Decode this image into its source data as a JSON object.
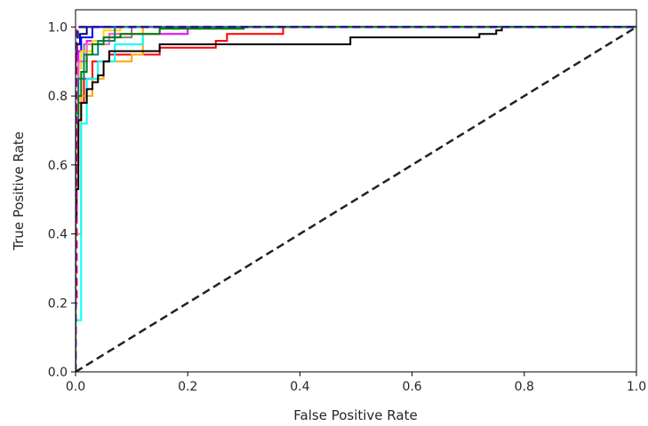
{
  "chart_data": {
    "type": "line",
    "title": "",
    "xlabel": "False Positive Rate",
    "ylabel": "True Positive Rate",
    "xlim": [
      0.0,
      1.0
    ],
    "ylim": [
      0.0,
      1.05
    ],
    "xticks": [
      0.0,
      0.2,
      0.4,
      0.6,
      0.8,
      1.0
    ],
    "yticks": [
      0.0,
      0.2,
      0.4,
      0.6,
      0.8,
      1.0
    ],
    "xtick_labels": [
      "0.0",
      "0.2",
      "0.4",
      "0.6",
      "0.8",
      "1.0"
    ],
    "ytick_labels": [
      "0.0",
      "0.2",
      "0.4",
      "0.6",
      "0.8",
      "1.0"
    ],
    "grid": false,
    "legend": "none",
    "series": [
      {
        "color": "#000080",
        "style": "solid",
        "x": [
          0,
          0,
          0.003,
          0.003,
          0.008,
          0.008,
          0.02,
          0.02,
          0.05,
          0.05,
          1.0
        ],
        "y": [
          0,
          0.9,
          0.9,
          0.95,
          0.95,
          0.98,
          0.98,
          1.0,
          1.0,
          1.0,
          1.0
        ]
      },
      {
        "color": "#0000ff",
        "style": "solid",
        "x": [
          0,
          0,
          0.005,
          0.005,
          0.01,
          0.01,
          0.03,
          0.03,
          1.0
        ],
        "y": [
          0,
          0.85,
          0.85,
          0.93,
          0.93,
          0.97,
          0.97,
          1.0,
          1.0
        ]
      },
      {
        "color": "#ff0000",
        "style": "solid",
        "x": [
          0,
          0,
          0.005,
          0.005,
          0.015,
          0.015,
          0.03,
          0.03,
          0.06,
          0.06,
          0.15,
          0.15,
          0.25,
          0.25,
          0.27,
          0.27,
          0.37,
          0.37,
          1.0
        ],
        "y": [
          0,
          0.6,
          0.6,
          0.78,
          0.78,
          0.85,
          0.85,
          0.9,
          0.9,
          0.92,
          0.92,
          0.94,
          0.94,
          0.96,
          0.96,
          0.98,
          0.98,
          1.0,
          1.0
        ]
      },
      {
        "color": "#ffa500",
        "style": "solid",
        "x": [
          0,
          0,
          0.01,
          0.01,
          0.03,
          0.03,
          0.05,
          0.05,
          0.1,
          0.1,
          0.12,
          0.12,
          1.0
        ],
        "y": [
          0,
          0.4,
          0.4,
          0.8,
          0.8,
          0.85,
          0.85,
          0.9,
          0.9,
          0.92,
          0.92,
          1.0,
          1.0
        ]
      },
      {
        "color": "#00ffff",
        "style": "solid",
        "x": [
          0,
          0,
          0.01,
          0.01,
          0.02,
          0.02,
          0.04,
          0.04,
          0.07,
          0.07,
          0.12,
          0.12,
          0.2,
          0.2,
          1.0
        ],
        "y": [
          0,
          0.15,
          0.15,
          0.72,
          0.72,
          0.85,
          0.85,
          0.9,
          0.9,
          0.95,
          0.95,
          0.98,
          0.98,
          1.0,
          1.0
        ]
      },
      {
        "color": "#ff00ff",
        "style": "solid",
        "x": [
          0,
          0,
          0.005,
          0.005,
          0.02,
          0.02,
          0.06,
          0.06,
          0.2,
          0.2,
          1.0
        ],
        "y": [
          0,
          0.88,
          0.88,
          0.93,
          0.93,
          0.96,
          0.96,
          0.98,
          0.98,
          1.0,
          1.0
        ]
      },
      {
        "color": "#808080",
        "style": "solid",
        "x": [
          0,
          0,
          0.005,
          0.005,
          0.015,
          0.015,
          0.05,
          0.05,
          0.1,
          0.1,
          1.0
        ],
        "y": [
          0,
          0.85,
          0.85,
          0.9,
          0.9,
          0.95,
          0.95,
          0.97,
          0.97,
          1.0,
          1.0
        ]
      },
      {
        "color": "#ffd700",
        "style": "solid",
        "x": [
          0,
          0,
          0.01,
          0.01,
          0.03,
          0.03,
          0.05,
          0.05,
          0.08,
          0.08,
          1.0
        ],
        "y": [
          0,
          0.88,
          0.88,
          0.93,
          0.93,
          0.96,
          0.96,
          0.99,
          0.99,
          1.0,
          1.0
        ]
      },
      {
        "color": "#ff69b4",
        "style": "solid",
        "x": [
          0,
          0,
          0.005,
          0.005,
          0.02,
          0.02,
          0.06,
          0.06,
          0.15,
          0.15,
          1.0
        ],
        "y": [
          0,
          0.8,
          0.8,
          0.9,
          0.9,
          0.95,
          0.95,
          0.98,
          0.98,
          1.0,
          1.0
        ]
      },
      {
        "color": "#008080",
        "style": "solid",
        "x": [
          0,
          0,
          0.005,
          0.005,
          0.015,
          0.015,
          0.04,
          0.04,
          0.07,
          0.07,
          1.0
        ],
        "y": [
          0,
          0.7,
          0.7,
          0.85,
          0.85,
          0.92,
          0.92,
          0.96,
          0.96,
          1.0,
          1.0
        ]
      },
      {
        "color": "#000000",
        "style": "solid",
        "x": [
          0,
          0,
          0.002,
          0.002,
          0.005,
          0.005,
          0.01,
          0.01,
          0.02,
          0.02,
          0.03,
          0.03,
          0.04,
          0.04,
          0.05,
          0.05,
          0.06,
          0.06,
          0.15,
          0.15,
          0.49,
          0.49,
          0.72,
          0.72,
          0.75,
          0.75,
          0.76,
          0.76,
          1.0
        ],
        "y": [
          0,
          0.45,
          0.45,
          0.53,
          0.53,
          0.73,
          0.73,
          0.78,
          0.78,
          0.82,
          0.82,
          0.84,
          0.84,
          0.86,
          0.86,
          0.9,
          0.9,
          0.93,
          0.93,
          0.95,
          0.95,
          0.97,
          0.97,
          0.98,
          0.98,
          0.99,
          0.99,
          1.0,
          1.0
        ]
      },
      {
        "color": "#008000",
        "style": "solid",
        "x": [
          0,
          0,
          0.005,
          0.005,
          0.01,
          0.01,
          0.02,
          0.02,
          0.03,
          0.03,
          0.05,
          0.05,
          0.08,
          0.08,
          0.15,
          0.15,
          0.3,
          0.3,
          1.0
        ],
        "y": [
          0,
          0.75,
          0.75,
          0.8,
          0.8,
          0.87,
          0.87,
          0.92,
          0.92,
          0.95,
          0.95,
          0.97,
          0.97,
          0.98,
          0.98,
          0.995,
          0.995,
          1.0,
          1.0
        ]
      },
      {
        "color": "#ff1493",
        "style": "dashed",
        "x": [
          0,
          0,
          0.002,
          0.002,
          1.0
        ],
        "y": [
          0,
          0.2,
          0.2,
          1.0,
          1.0
        ]
      },
      {
        "color": "#1f1f8f",
        "style": "dashed",
        "x": [
          0,
          0,
          0.004,
          0.004,
          1.0
        ],
        "y": [
          0,
          0.95,
          0.95,
          1.0,
          1.0
        ]
      },
      {
        "color": "#222222",
        "style": "dashed",
        "x": [
          0,
          1.0
        ],
        "y": [
          0,
          1.0
        ]
      }
    ]
  }
}
